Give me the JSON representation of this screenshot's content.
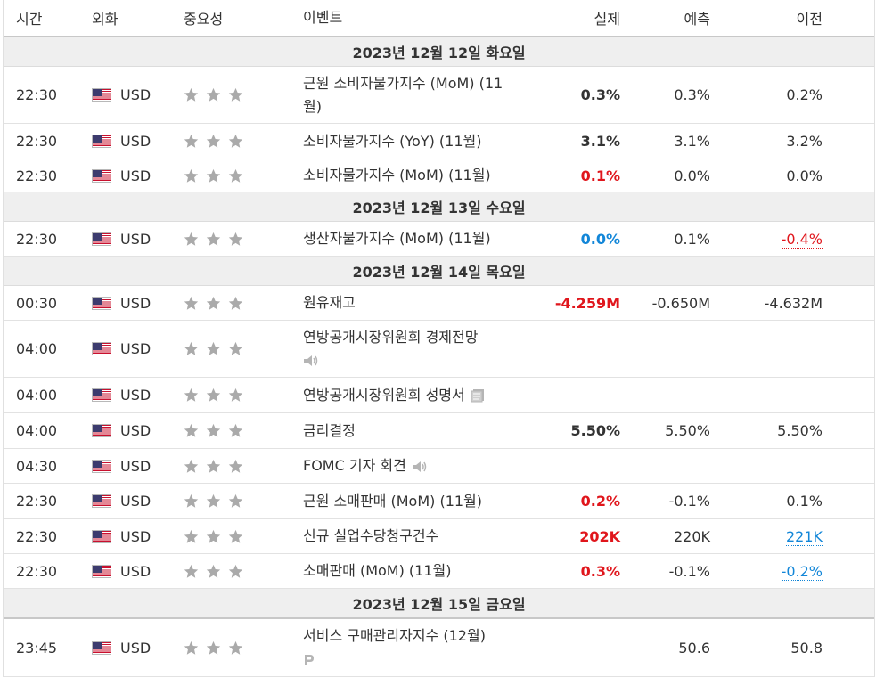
{
  "header": {
    "time": "시간",
    "currency": "외화",
    "importance": "중요성",
    "event": "이벤트",
    "actual": "실제",
    "forecast": "예측",
    "previous": "이전"
  },
  "dates": [
    "2023년 12월 12일 화요일",
    "2023년 12월 13일 수요일",
    "2023년 12월 14일 목요일",
    "2023년 12월 15일 금요일"
  ],
  "rows": [
    {
      "time": "22:30",
      "currency": "USD",
      "event": "근원 소비자물가지수 (MoM) (11월)",
      "actual": "0.3%",
      "forecast": "0.3%",
      "previous": "0.2%"
    },
    {
      "time": "22:30",
      "currency": "USD",
      "event": "소비자물가지수 (YoY) (11월)",
      "actual": "3.1%",
      "forecast": "3.1%",
      "previous": "3.2%"
    },
    {
      "time": "22:30",
      "currency": "USD",
      "event": "소비자물가지수 (MoM) (11월)",
      "actual": "0.1%",
      "forecast": "0.0%",
      "previous": "0.0%"
    },
    {
      "time": "22:30",
      "currency": "USD",
      "event": "생산자물가지수 (MoM) (11월)",
      "actual": "0.0%",
      "forecast": "0.1%",
      "previous": "-0.4%"
    },
    {
      "time": "00:30",
      "currency": "USD",
      "event": "원유재고",
      "actual": "-4.259M",
      "forecast": "-0.650M",
      "previous": "-4.632M"
    },
    {
      "time": "04:00",
      "currency": "USD",
      "event": "연방공개시장위원회 경제전망",
      "actual": "",
      "forecast": "",
      "previous": ""
    },
    {
      "time": "04:00",
      "currency": "USD",
      "event": "연방공개시장위원회 성명서",
      "actual": "",
      "forecast": "",
      "previous": ""
    },
    {
      "time": "04:00",
      "currency": "USD",
      "event": "금리결정",
      "actual": "5.50%",
      "forecast": "5.50%",
      "previous": "5.50%"
    },
    {
      "time": "04:30",
      "currency": "USD",
      "event": "FOMC 기자 회견",
      "actual": "",
      "forecast": "",
      "previous": ""
    },
    {
      "time": "22:30",
      "currency": "USD",
      "event": "근원 소매판매 (MoM) (11월)",
      "actual": "0.2%",
      "forecast": "-0.1%",
      "previous": "0.1%"
    },
    {
      "time": "22:30",
      "currency": "USD",
      "event": "신규 실업수당청구건수",
      "actual": "202K",
      "forecast": "220K",
      "previous": "221K"
    },
    {
      "time": "22:30",
      "currency": "USD",
      "event": "소매판매 (MoM) (11월)",
      "actual": "0.3%",
      "forecast": "-0.1%",
      "previous": "-0.2%"
    },
    {
      "time": "23:45",
      "currency": "USD",
      "event": "서비스 구매관리자지수 (12월)",
      "actual": "",
      "forecast": "50.6",
      "previous": "50.8"
    }
  ],
  "colors": {
    "negative": "#e0161c",
    "positive": "#1286d8",
    "star": "#aaaaaa"
  }
}
